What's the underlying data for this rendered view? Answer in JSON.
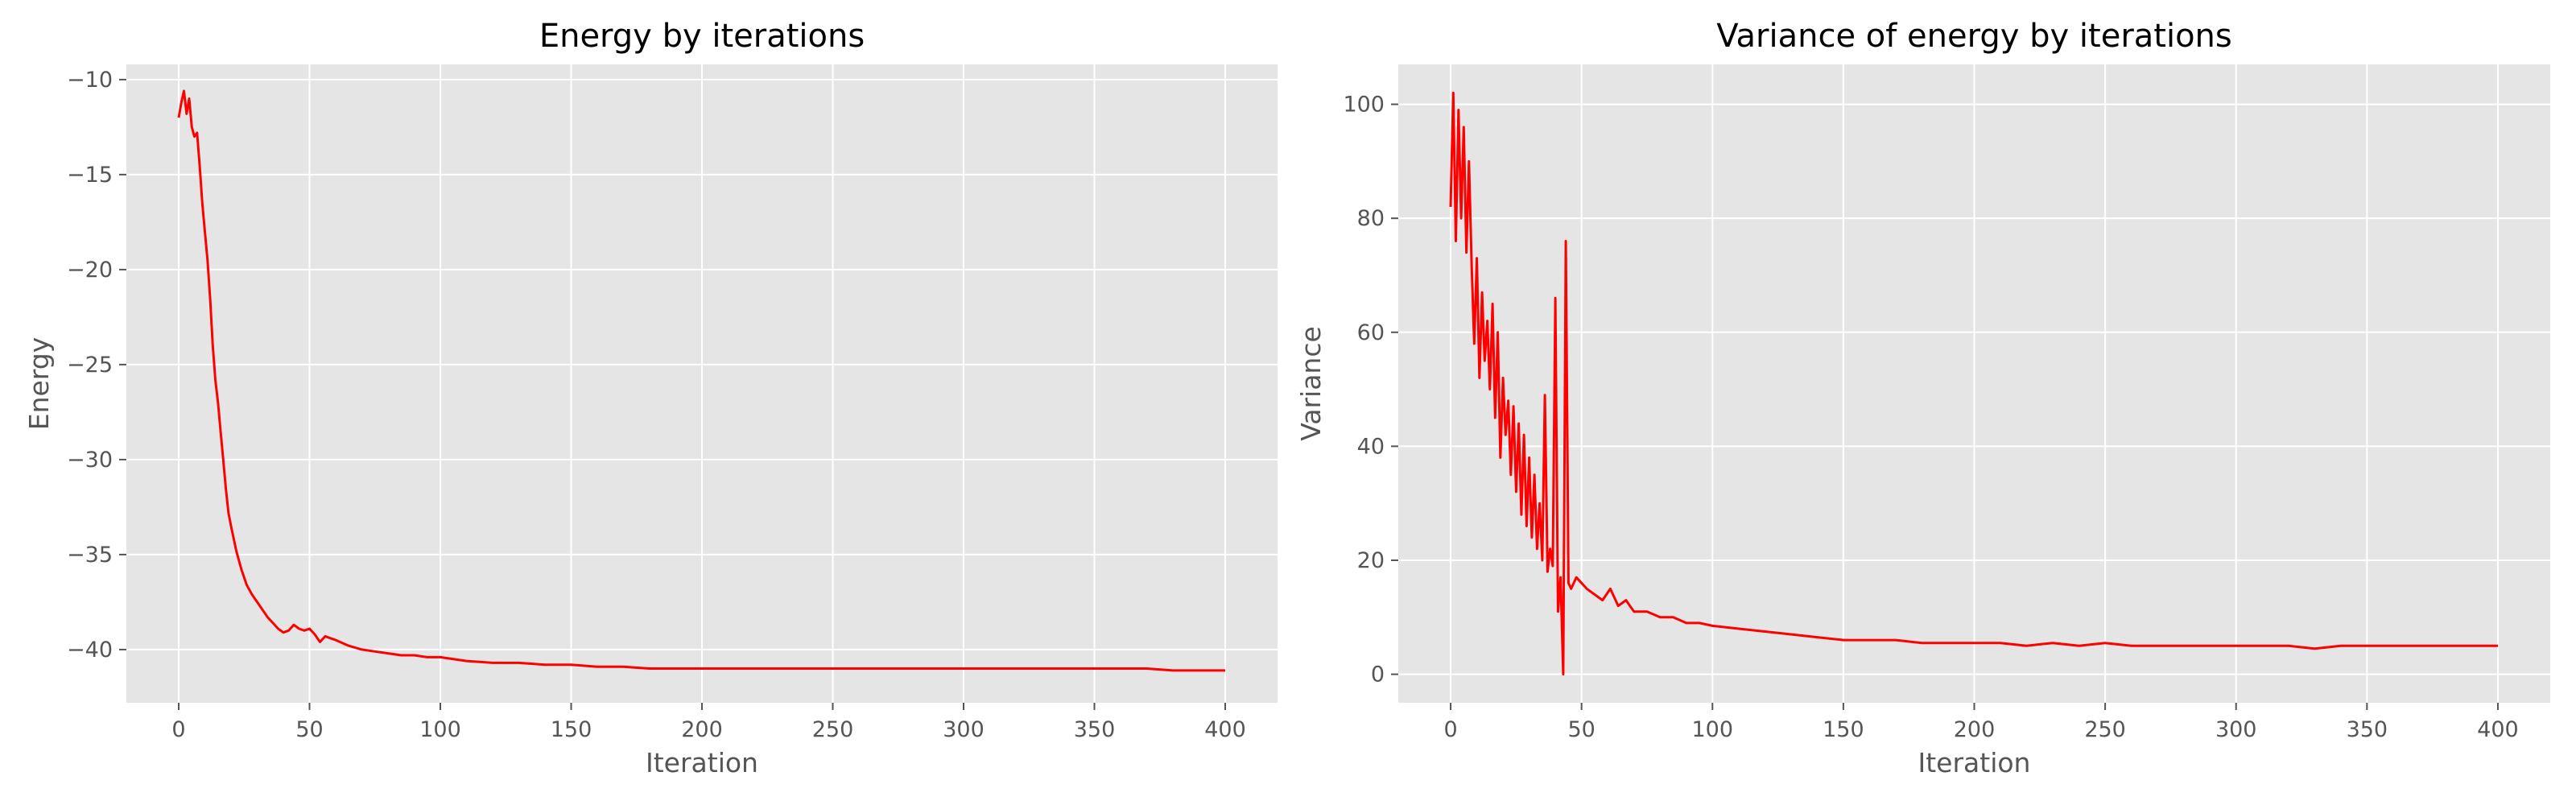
{
  "style": {
    "background": "#ffffff",
    "plot_background": "#e5e5e5",
    "grid_color": "#ffffff",
    "text_color": "#555555",
    "title_color": "#000000"
  },
  "chart_data": [
    {
      "type": "line",
      "title": "Energy by iterations",
      "xlabel": "Iteration",
      "ylabel": "Energy",
      "xlim": [
        -20,
        420
      ],
      "ylim": [
        -42.8,
        -9.2
      ],
      "xticks": [
        0,
        50,
        100,
        150,
        200,
        250,
        300,
        350,
        400
      ],
      "yticks": [
        -40,
        -35,
        -30,
        -25,
        -20,
        -15,
        -10
      ],
      "grid": true,
      "series": [
        {
          "color": "#ff0000",
          "x": [
            0,
            1,
            2,
            3,
            4,
            5,
            6,
            7,
            8,
            9,
            10,
            11,
            12,
            13,
            14,
            15,
            16,
            17,
            18,
            19,
            20,
            22,
            24,
            26,
            28,
            30,
            32,
            34,
            36,
            38,
            40,
            42,
            44,
            46,
            48,
            50,
            52,
            54,
            56,
            58,
            60,
            65,
            70,
            75,
            80,
            85,
            90,
            95,
            100,
            110,
            120,
            130,
            140,
            150,
            160,
            170,
            180,
            190,
            200,
            210,
            220,
            230,
            240,
            250,
            260,
            270,
            280,
            290,
            300,
            310,
            320,
            330,
            340,
            350,
            360,
            370,
            380,
            390,
            400
          ],
          "values": [
            -12.0,
            -11.2,
            -10.6,
            -11.8,
            -11.0,
            -12.5,
            -13.0,
            -12.8,
            -14.5,
            -16.5,
            -18.0,
            -19.5,
            -21.5,
            -24.0,
            -25.8,
            -27.0,
            -28.5,
            -30.0,
            -31.5,
            -32.8,
            -33.5,
            -34.8,
            -35.8,
            -36.6,
            -37.1,
            -37.5,
            -37.9,
            -38.3,
            -38.6,
            -38.9,
            -39.1,
            -39.0,
            -38.7,
            -38.9,
            -39.0,
            -38.9,
            -39.2,
            -39.6,
            -39.3,
            -39.4,
            -39.5,
            -39.8,
            -40.0,
            -40.1,
            -40.2,
            -40.3,
            -40.3,
            -40.4,
            -40.4,
            -40.6,
            -40.7,
            -40.7,
            -40.8,
            -40.8,
            -40.9,
            -40.9,
            -41.0,
            -41.0,
            -41.0,
            -41.0,
            -41.0,
            -41.0,
            -41.0,
            -41.0,
            -41.0,
            -41.0,
            -41.0,
            -41.0,
            -41.0,
            -41.0,
            -41.0,
            -41.0,
            -41.0,
            -41.0,
            -41.0,
            -41.0,
            -41.1,
            -41.1,
            -41.1
          ]
        }
      ]
    },
    {
      "type": "line",
      "title": "Variance of energy by iterations",
      "xlabel": "Iteration",
      "ylabel": "Variance",
      "xlim": [
        -20,
        420
      ],
      "ylim": [
        -5,
        107
      ],
      "xticks": [
        0,
        50,
        100,
        150,
        200,
        250,
        300,
        350,
        400
      ],
      "yticks": [
        0,
        20,
        40,
        60,
        80,
        100
      ],
      "grid": true,
      "series": [
        {
          "color": "#ff0000",
          "x": [
            0,
            1,
            2,
            3,
            4,
            5,
            6,
            7,
            8,
            9,
            10,
            11,
            12,
            13,
            14,
            15,
            16,
            17,
            18,
            19,
            20,
            21,
            22,
            23,
            24,
            25,
            26,
            27,
            28,
            29,
            30,
            31,
            32,
            33,
            34,
            35,
            36,
            37,
            38,
            39,
            40,
            41,
            42,
            43,
            44,
            45,
            46,
            48,
            50,
            52,
            55,
            58,
            61,
            64,
            67,
            70,
            75,
            80,
            85,
            90,
            95,
            100,
            110,
            120,
            130,
            140,
            150,
            160,
            170,
            180,
            190,
            200,
            210,
            220,
            230,
            240,
            250,
            260,
            270,
            280,
            290,
            300,
            310,
            320,
            330,
            340,
            350,
            360,
            370,
            380,
            390,
            400
          ],
          "values": [
            82,
            102,
            76,
            99,
            80,
            96,
            74,
            90,
            72,
            58,
            73,
            52,
            67,
            55,
            62,
            50,
            65,
            45,
            60,
            38,
            52,
            42,
            48,
            35,
            47,
            32,
            44,
            28,
            42,
            26,
            38,
            24,
            35,
            22,
            30,
            20,
            49,
            18,
            22,
            19,
            66,
            11,
            17,
            0,
            76,
            16,
            15,
            17,
            16,
            15,
            14,
            13,
            15,
            12,
            13,
            11,
            11,
            10,
            10,
            9,
            9,
            8.5,
            8,
            7.5,
            7,
            6.5,
            6,
            6,
            6,
            5.5,
            5.5,
            5.5,
            5.5,
            5,
            5.5,
            5,
            5.5,
            5,
            5,
            5,
            5,
            5,
            5,
            5,
            4.5,
            5,
            5,
            5,
            5,
            5,
            5,
            5
          ]
        }
      ]
    }
  ]
}
